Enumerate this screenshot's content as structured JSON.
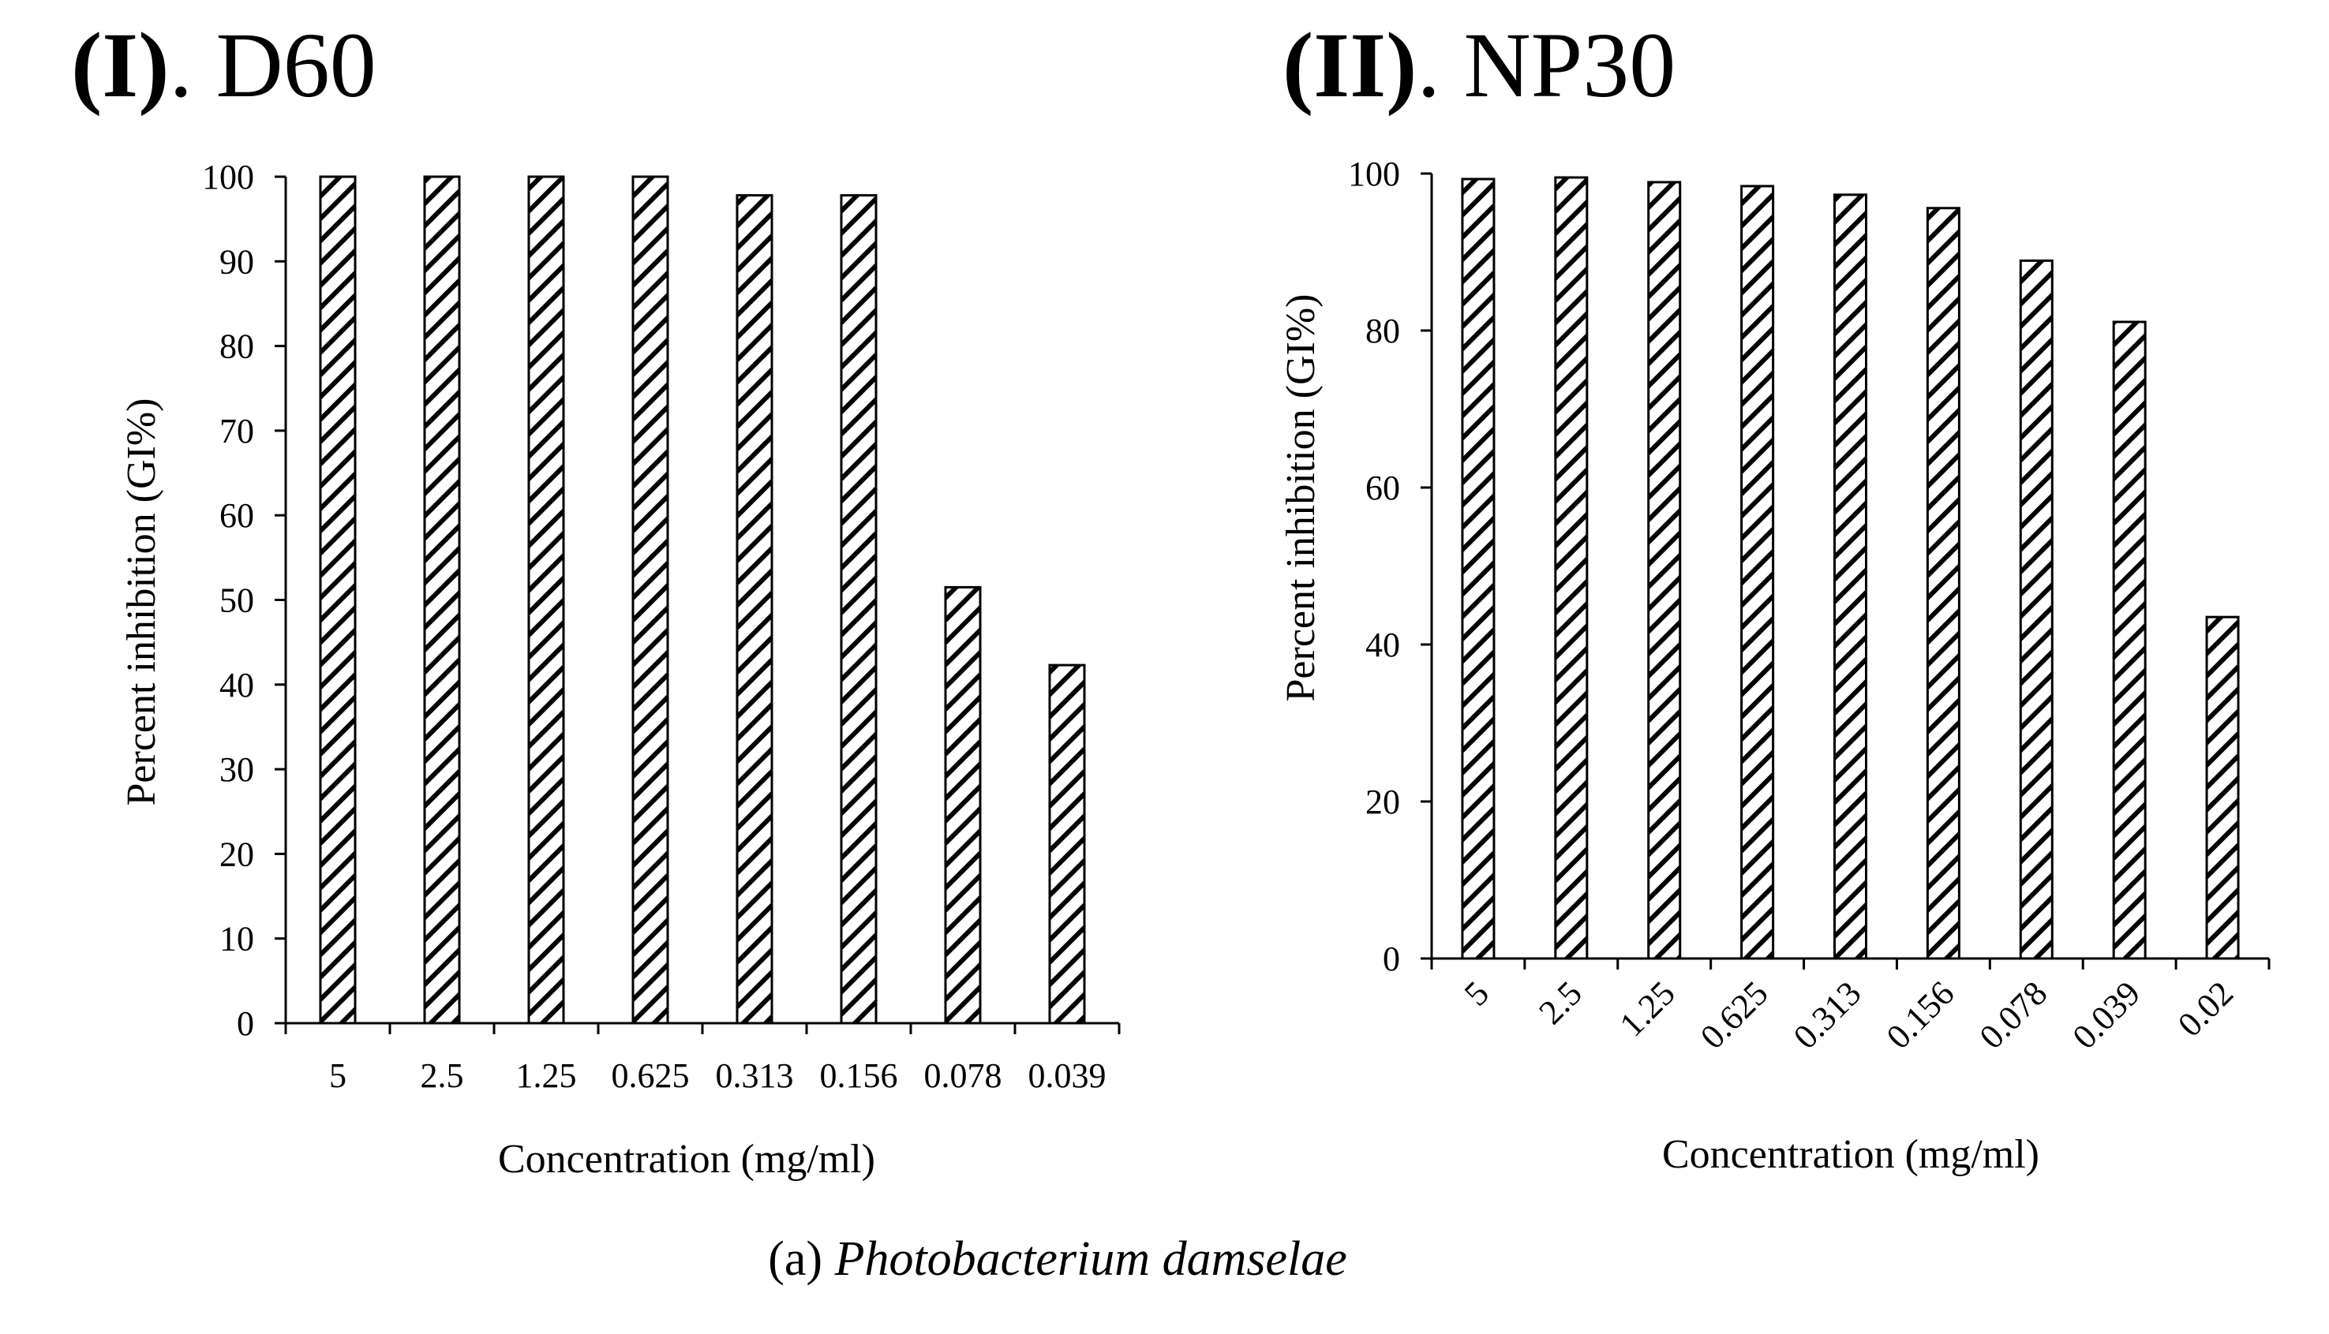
{
  "caption": {
    "prefix": "(a) ",
    "organism": "Photobacterium damselae"
  },
  "chart_data": [
    {
      "type": "bar",
      "title_roman": "(I)",
      "title_name": ". D60",
      "xlabel": "Concentration (mg/ml)",
      "ylabel": "Percent inhibition (GI%)",
      "categories": [
        "5",
        "2.5",
        "1.25",
        "0.625",
        "0.313",
        "0.156",
        "0.078",
        "0.039"
      ],
      "values": [
        100,
        100,
        100,
        100,
        97.8,
        97.8,
        51.5,
        42.3
      ],
      "ylim": [
        0,
        100
      ],
      "yticks": [
        0,
        10,
        20,
        30,
        40,
        50,
        60,
        70,
        80,
        90,
        100
      ],
      "xtick_rotation": 0,
      "grid": false,
      "legend": "none",
      "bar_fill": "diagonal-hatch",
      "colors": {
        "bar_stroke": "#000000",
        "hatch": "#000000",
        "background": "#ffffff"
      }
    },
    {
      "type": "bar",
      "title_roman": "(II)",
      "title_name": ". NP30",
      "xlabel": "Concentration (mg/ml)",
      "ylabel": "Percent inhibition (GI%)",
      "categories": [
        "5",
        "2.5",
        "1.25",
        "0.625",
        "0.313",
        "0.156",
        "0.078",
        "0.039",
        "0.02"
      ],
      "values": [
        99.3,
        99.5,
        98.9,
        98.4,
        97.3,
        95.6,
        88.9,
        81.1,
        43.5
      ],
      "ylim": [
        0,
        100
      ],
      "yticks": [
        0,
        20,
        40,
        60,
        80,
        100
      ],
      "xtick_rotation": -45,
      "grid": false,
      "legend": "none",
      "bar_fill": "diagonal-hatch",
      "colors": {
        "bar_stroke": "#000000",
        "hatch": "#000000",
        "background": "#ffffff"
      }
    }
  ]
}
